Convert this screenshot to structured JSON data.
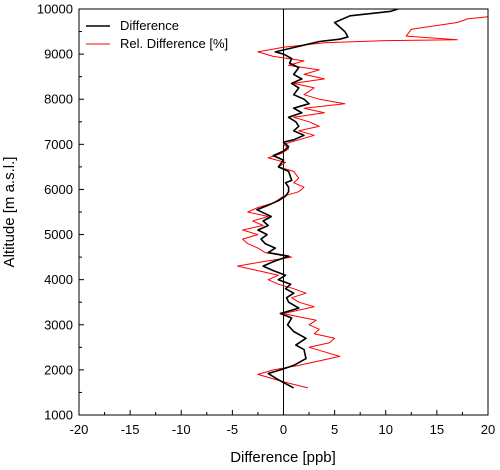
{
  "chart_data": {
    "type": "line",
    "title": "",
    "xlabel": "Difference [ppb]",
    "ylabel": "Altitude [m a.s.l.]",
    "xlim": [
      -20,
      20
    ],
    "ylim": [
      1000,
      10000
    ],
    "x_ticks": [
      "-20",
      "-15",
      "-10",
      "-5",
      "0",
      "5",
      "10",
      "15",
      "20"
    ],
    "y_ticks": [
      "1000",
      "2000",
      "3000",
      "4000",
      "5000",
      "6000",
      "7000",
      "8000",
      "9000",
      "10000"
    ],
    "grid": false,
    "legend_position": "top-left",
    "zero_line": true,
    "series": [
      {
        "name": "Difference",
        "color": "#000000",
        "points": [
          [
            1.0,
            1600
          ],
          [
            -0.5,
            1780
          ],
          [
            -1.5,
            1920
          ],
          [
            -0.3,
            2000
          ],
          [
            1.0,
            2100
          ],
          [
            2.2,
            2250
          ],
          [
            2.0,
            2450
          ],
          [
            1.2,
            2550
          ],
          [
            2.2,
            2700
          ],
          [
            1.0,
            2850
          ],
          [
            0.4,
            3000
          ],
          [
            0.8,
            3150
          ],
          [
            -0.3,
            3250
          ],
          [
            1.5,
            3370
          ],
          [
            0.5,
            3500
          ],
          [
            0.3,
            3600
          ],
          [
            1.0,
            3700
          ],
          [
            0.2,
            3800
          ],
          [
            0.7,
            3900
          ],
          [
            -0.5,
            4000
          ],
          [
            0.2,
            4100
          ],
          [
            -1.0,
            4200
          ],
          [
            -2.0,
            4300
          ],
          [
            -1.0,
            4400
          ],
          [
            0.5,
            4520
          ],
          [
            -1.5,
            4600
          ],
          [
            -0.8,
            4700
          ],
          [
            -1.8,
            4800
          ],
          [
            -2.2,
            4900
          ],
          [
            -1.6,
            5000
          ],
          [
            -2.5,
            5100
          ],
          [
            -1.5,
            5200
          ],
          [
            -2.0,
            5300
          ],
          [
            -1.2,
            5400
          ],
          [
            -2.6,
            5550
          ],
          [
            -1.5,
            5650
          ],
          [
            -0.5,
            5750
          ],
          [
            0.2,
            5850
          ],
          [
            0.5,
            5950
          ],
          [
            0.5,
            6050
          ],
          [
            0.2,
            6150
          ],
          [
            0.8,
            6200
          ],
          [
            0.5,
            6400
          ],
          [
            -0.5,
            6500
          ],
          [
            0.0,
            6650
          ],
          [
            -1.0,
            6750
          ],
          [
            0.0,
            6850
          ],
          [
            0.5,
            6950
          ],
          [
            0.0,
            7050
          ],
          [
            1.0,
            7100
          ],
          [
            2.0,
            7200
          ],
          [
            1.0,
            7300
          ],
          [
            1.5,
            7400
          ],
          [
            1.2,
            7500
          ],
          [
            0.5,
            7600
          ],
          [
            1.8,
            7700
          ],
          [
            1.0,
            7800
          ],
          [
            2.5,
            7900
          ],
          [
            2.0,
            8000
          ],
          [
            1.0,
            8100
          ],
          [
            1.5,
            8250
          ],
          [
            0.8,
            8350
          ],
          [
            1.8,
            8450
          ],
          [
            1.0,
            8550
          ],
          [
            1.5,
            8700
          ],
          [
            0.6,
            8800
          ],
          [
            0.8,
            8900
          ],
          [
            0.0,
            9000
          ],
          [
            -0.8,
            9050
          ],
          [
            2.0,
            9200
          ],
          [
            3.5,
            9280
          ],
          [
            5.5,
            9330
          ],
          [
            6.3,
            9380
          ],
          [
            6.0,
            9500
          ],
          [
            5.0,
            9700
          ],
          [
            6.5,
            9850
          ],
          [
            10.5,
            9950
          ],
          [
            11.2,
            10000
          ]
        ]
      },
      {
        "name": "Rel. Difference [%]",
        "color": "#ff0000",
        "points": [
          [
            2.4,
            1600
          ],
          [
            0.6,
            1700
          ],
          [
            -1.0,
            1800
          ],
          [
            -2.5,
            1900
          ],
          [
            -1.0,
            2000
          ],
          [
            1.5,
            2100
          ],
          [
            3.5,
            2200
          ],
          [
            5.5,
            2300
          ],
          [
            4.0,
            2400
          ],
          [
            2.5,
            2500
          ],
          [
            4.5,
            2600
          ],
          [
            5.0,
            2700
          ],
          [
            3.0,
            2800
          ],
          [
            3.5,
            2900
          ],
          [
            2.5,
            3000
          ],
          [
            3.2,
            3100
          ],
          [
            1.0,
            3200
          ],
          [
            0.0,
            3250
          ],
          [
            2.0,
            3350
          ],
          [
            3.0,
            3400
          ],
          [
            1.5,
            3500
          ],
          [
            0.8,
            3600
          ],
          [
            2.2,
            3700
          ],
          [
            1.0,
            3800
          ],
          [
            -0.5,
            3900
          ],
          [
            -1.5,
            4000
          ],
          [
            -0.5,
            4100
          ],
          [
            -2.5,
            4200
          ],
          [
            -4.5,
            4300
          ],
          [
            -2.0,
            4400
          ],
          [
            0.8,
            4500
          ],
          [
            -1.8,
            4600
          ],
          [
            -2.5,
            4700
          ],
          [
            -3.5,
            4800
          ],
          [
            -4.0,
            4900
          ],
          [
            -2.5,
            5000
          ],
          [
            -4.0,
            5100
          ],
          [
            -2.0,
            5200
          ],
          [
            -3.0,
            5300
          ],
          [
            -1.5,
            5400
          ],
          [
            -3.5,
            5500
          ],
          [
            -2.5,
            5600
          ],
          [
            -1.0,
            5700
          ],
          [
            0.0,
            5850
          ],
          [
            1.5,
            5950
          ],
          [
            2.0,
            6050
          ],
          [
            1.0,
            6150
          ],
          [
            1.5,
            6250
          ],
          [
            1.0,
            6400
          ],
          [
            -0.5,
            6500
          ],
          [
            0.2,
            6600
          ],
          [
            -1.5,
            6700
          ],
          [
            -0.2,
            6800
          ],
          [
            0.5,
            6900
          ],
          [
            0.0,
            7000
          ],
          [
            1.5,
            7100
          ],
          [
            3.0,
            7200
          ],
          [
            1.5,
            7300
          ],
          [
            3.5,
            7400
          ],
          [
            2.5,
            7500
          ],
          [
            1.0,
            7600
          ],
          [
            4.0,
            7700
          ],
          [
            2.0,
            7800
          ],
          [
            6.0,
            7900
          ],
          [
            3.5,
            8000
          ],
          [
            2.0,
            8100
          ],
          [
            3.0,
            8250
          ],
          [
            1.0,
            8350
          ],
          [
            4.0,
            8450
          ],
          [
            2.0,
            8550
          ],
          [
            3.5,
            8650
          ],
          [
            0.5,
            8750
          ],
          [
            2.0,
            8850
          ],
          [
            -1.0,
            8950
          ],
          [
            -2.5,
            9050
          ],
          [
            0.0,
            9150
          ],
          [
            4.0,
            9250
          ],
          [
            10.0,
            9300
          ],
          [
            17.0,
            9320
          ],
          [
            12.0,
            9400
          ],
          [
            12.5,
            9550
          ],
          [
            17.0,
            9700
          ],
          [
            18.0,
            9780
          ],
          [
            20.0,
            9830
          ]
        ]
      }
    ]
  }
}
